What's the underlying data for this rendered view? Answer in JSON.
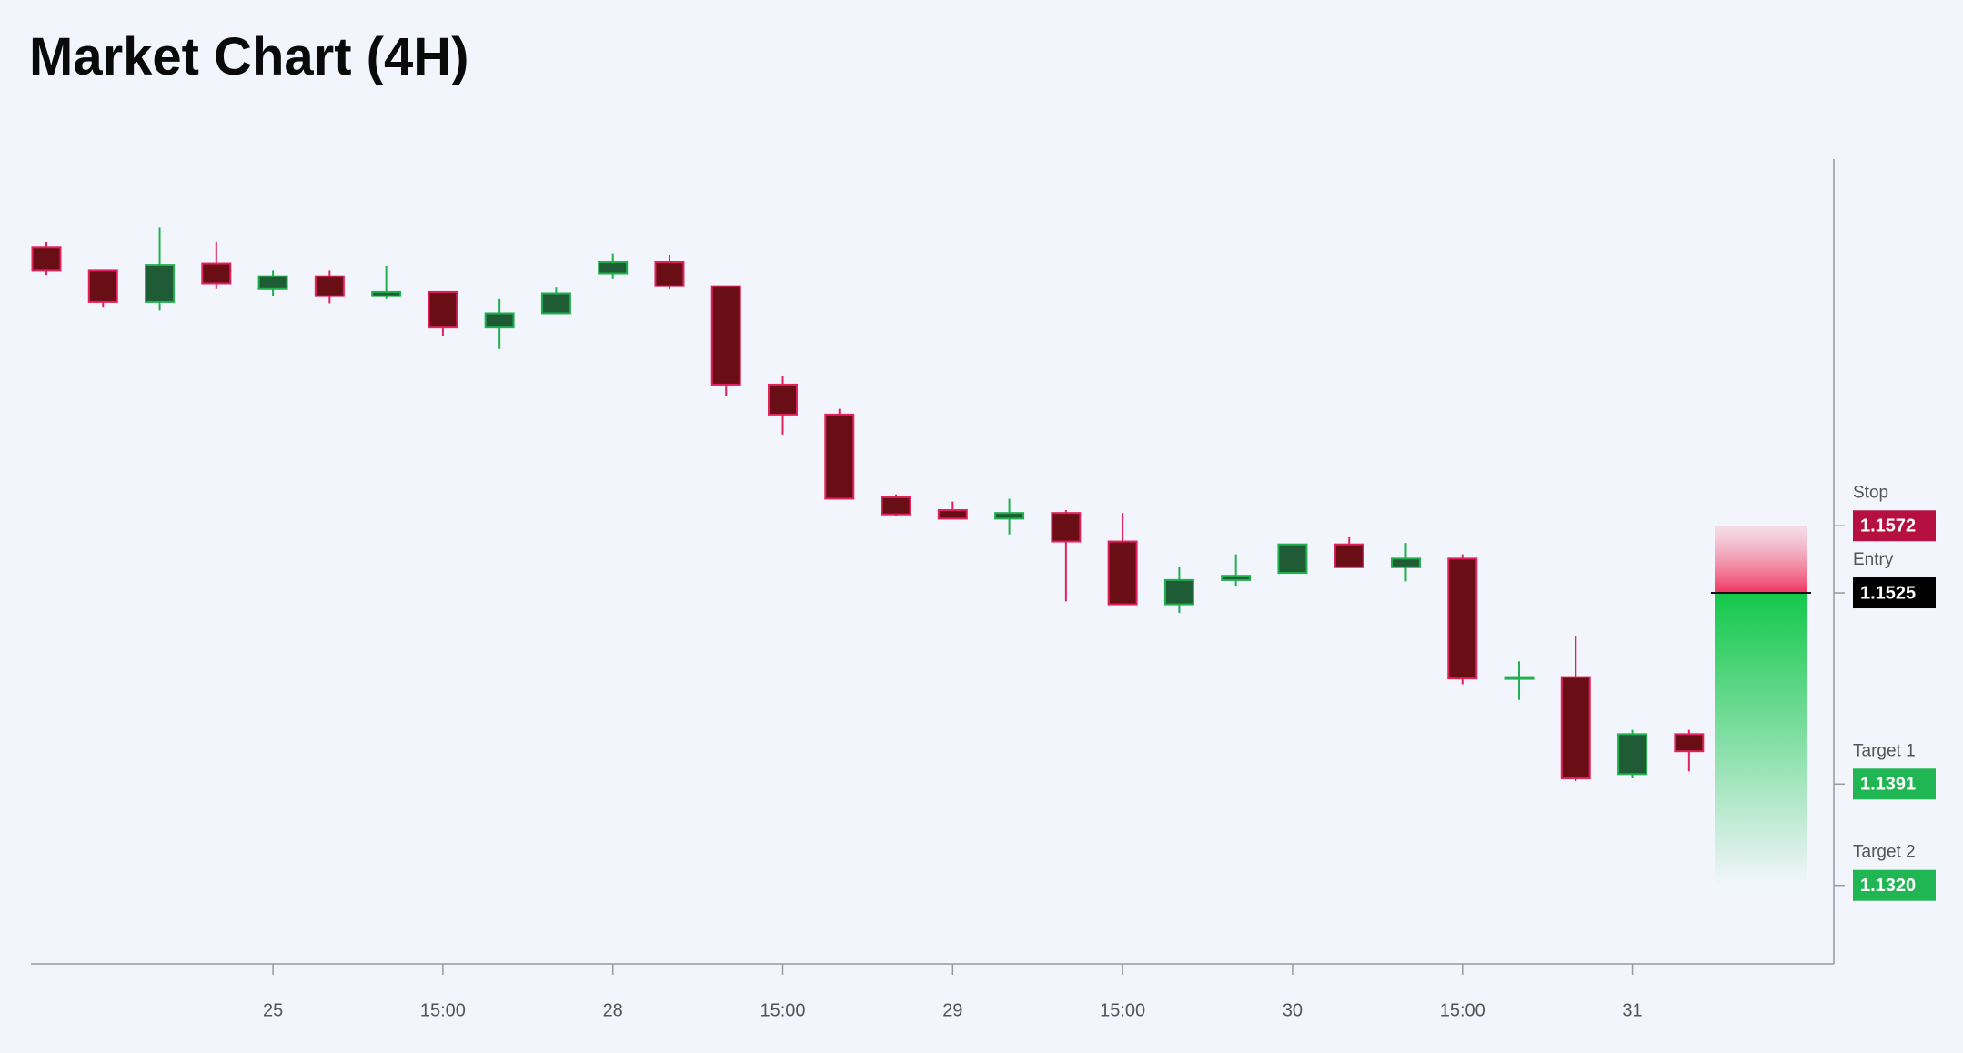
{
  "chart_data": {
    "type": "candlestick",
    "title": "Market Chart (4H)",
    "categories": [
      null,
      null,
      null,
      null,
      "25",
      null,
      null,
      "15:00",
      null,
      null,
      "28",
      null,
      null,
      "15:00",
      null,
      null,
      "29",
      null,
      null,
      "15:00",
      null,
      null,
      "30",
      null,
      null,
      "15:00",
      null,
      null,
      "31",
      null
    ],
    "open": [
      1.1767,
      1.1751,
      1.1729,
      1.1756,
      1.1738,
      1.1747,
      1.1733,
      1.1736,
      1.1711,
      1.1721,
      1.1749,
      1.1757,
      1.174,
      1.1671,
      1.165,
      1.1592,
      1.1583,
      1.1577,
      1.1581,
      1.1561,
      1.1517,
      1.1534,
      1.1539,
      1.1559,
      1.1543,
      1.1549,
      1.1465,
      1.1466,
      1.1398,
      1.1426
    ],
    "high": [
      1.1771,
      1.1751,
      1.1781,
      1.1771,
      1.1751,
      1.1751,
      1.1754,
      1.1736,
      1.1731,
      1.1739,
      1.1763,
      1.1762,
      1.174,
      1.1677,
      1.1654,
      1.1594,
      1.1589,
      1.1591,
      1.1583,
      1.1581,
      1.1543,
      1.1552,
      1.1559,
      1.1564,
      1.156,
      1.1552,
      1.1477,
      1.1495,
      1.1429,
      1.1429
    ],
    "low": [
      1.1748,
      1.1725,
      1.1723,
      1.1738,
      1.1733,
      1.1728,
      1.1731,
      1.1705,
      1.1696,
      1.1721,
      1.1745,
      1.1738,
      1.1663,
      1.1636,
      1.1591,
      1.1579,
      1.1577,
      1.1566,
      1.1519,
      1.1517,
      1.1511,
      1.153,
      1.1539,
      1.1543,
      1.1533,
      1.1461,
      1.145,
      1.1393,
      1.1395,
      1.14
    ],
    "close": [
      1.1751,
      1.1729,
      1.1755,
      1.1742,
      1.1747,
      1.1733,
      1.1736,
      1.1711,
      1.1721,
      1.1735,
      1.1757,
      1.174,
      1.1671,
      1.165,
      1.1591,
      1.158,
      1.1577,
      1.1581,
      1.1561,
      1.1517,
      1.1534,
      1.1537,
      1.1559,
      1.1543,
      1.1549,
      1.1465,
      1.1466,
      1.1395,
      1.1426,
      1.1414
    ],
    "up_color": "#1f5c35",
    "up_border": "#21b04f",
    "down_color": "#6a0e16",
    "down_border": "#e0235c",
    "ylim": [
      1.1265,
      1.1829
    ],
    "levels": {
      "names": [
        "Stop",
        "Entry",
        "Target 1",
        "Target 2"
      ],
      "values": [
        1.1572,
        1.1525,
        1.1391,
        1.132
      ],
      "value_labels": [
        "1.1572",
        "1.1525",
        "1.1391",
        "1.1320"
      ],
      "colors": [
        "#b5103f",
        "#000000",
        "#1fb653",
        "#1fb653"
      ]
    }
  }
}
